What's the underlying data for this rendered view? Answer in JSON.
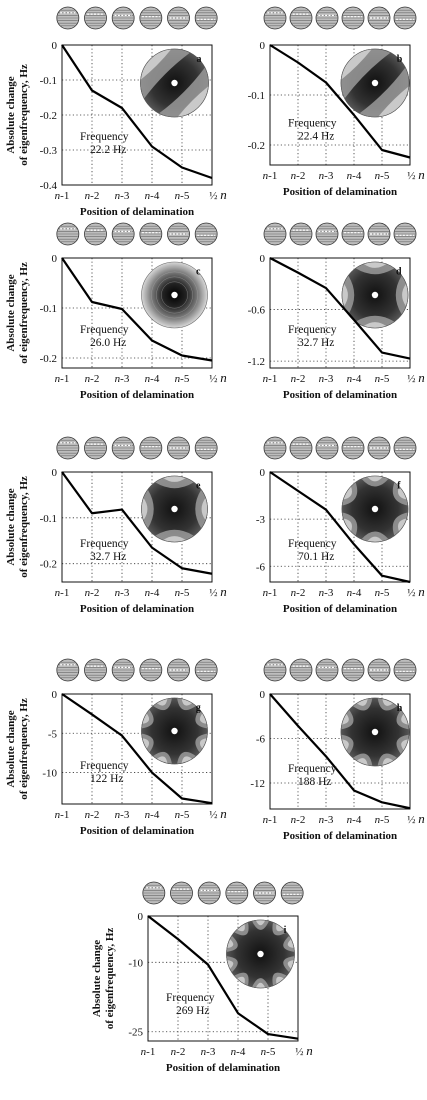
{
  "chart_data": [
    {
      "type": "line",
      "panel": "a",
      "frequency_label": "Frequency",
      "frequency": "22.2 Hz",
      "categories": [
        "n-1",
        "n-2",
        "n-3",
        "n-4",
        "n-5",
        "½ n"
      ],
      "values": [
        0,
        -0.13,
        -0.18,
        -0.29,
        -0.35,
        -0.38
      ],
      "y_ticks": [
        "0",
        "-0.1",
        "-0.2",
        "-0.3",
        "-0.4"
      ],
      "ylim": [
        -0.4,
        0
      ],
      "xlabel": "Position of delamination",
      "ylabel": [
        "Absolute change",
        "of eigenfrequency, Hz"
      ],
      "mode_lobes": 2,
      "grid": true
    },
    {
      "type": "line",
      "panel": "b",
      "frequency_label": "Frequency",
      "frequency": "22.4 Hz",
      "categories": [
        "n-1",
        "n-2",
        "n-3",
        "n-4",
        "n-5",
        "½ n"
      ],
      "values": [
        0,
        -0.035,
        -0.075,
        -0.14,
        -0.21,
        -0.225
      ],
      "y_ticks": [
        "0",
        "-0.1",
        "-0.2"
      ],
      "ylim": [
        -0.24,
        0
      ],
      "xlabel": "Position of delamination",
      "ylabel": null,
      "mode_lobes": 2,
      "grid": true
    },
    {
      "type": "line",
      "panel": "c",
      "frequency_label": "Frequency",
      "frequency": "26.0 Hz",
      "categories": [
        "n-1",
        "n-2",
        "n-3",
        "n-4",
        "n-5",
        "½ n"
      ],
      "values": [
        0,
        -0.088,
        -0.102,
        -0.165,
        -0.195,
        -0.205
      ],
      "y_ticks": [
        "0",
        "-0.1",
        "-0.2"
      ],
      "ylim": [
        -0.22,
        0
      ],
      "xlabel": "Position of delamination",
      "ylabel": [
        "Absolute change",
        "of eigenfrequency, Hz"
      ],
      "mode_lobes": 0,
      "grid": true
    },
    {
      "type": "line",
      "panel": "d",
      "frequency_label": "Frequency",
      "frequency": "32.7 Hz",
      "categories": [
        "n-1",
        "n-2",
        "n-3",
        "n-4",
        "n-5",
        "½ n"
      ],
      "values": [
        0,
        -0.17,
        -0.35,
        -0.72,
        -1.1,
        -1.17
      ],
      "y_ticks": [
        "0",
        "-0.6",
        "-1.2"
      ],
      "ylim": [
        -1.28,
        0
      ],
      "xlabel": "Position of delamination",
      "ylabel": null,
      "mode_lobes": 4,
      "grid": true
    },
    {
      "type": "line",
      "panel": "e",
      "frequency_label": "Frequency",
      "frequency": "32.7 Hz",
      "categories": [
        "n-1",
        "n-2",
        "n-3",
        "n-4",
        "n-5",
        "½ n"
      ],
      "values": [
        0,
        -0.09,
        -0.082,
        -0.165,
        -0.21,
        -0.222
      ],
      "y_ticks": [
        "0",
        "-0.1",
        "-0.2"
      ],
      "ylim": [
        -0.24,
        0
      ],
      "xlabel": "Position of delamination",
      "ylabel": [
        "Absolute change",
        "of eigenfrequency, Hz"
      ],
      "mode_lobes": 4,
      "grid": true
    },
    {
      "type": "line",
      "panel": "f",
      "frequency_label": "Frequency",
      "frequency": "70.1 Hz",
      "categories": [
        "n-1",
        "n-2",
        "n-3",
        "n-4",
        "n-5",
        "½ n"
      ],
      "values": [
        0,
        -1.2,
        -2.4,
        -4.6,
        -6.6,
        -7.0
      ],
      "y_ticks": [
        "0",
        "-3",
        "-6"
      ],
      "ylim": [
        -7.0,
        0
      ],
      "xlabel": "Position of delamination",
      "ylabel": null,
      "mode_lobes": 6,
      "grid": true
    },
    {
      "type": "line",
      "panel": "g",
      "frequency_label": "Frequency",
      "frequency": "122 Hz",
      "categories": [
        "n-1",
        "n-2",
        "n-3",
        "n-4",
        "n-5",
        "½ n"
      ],
      "values": [
        0,
        -2.6,
        -5.3,
        -10.0,
        -13.3,
        -13.9
      ],
      "y_ticks": [
        "0",
        "-5",
        "-10"
      ],
      "ylim": [
        -14,
        0
      ],
      "xlabel": "Position of delamination",
      "ylabel": [
        "Absolute change",
        "of eigenfrequency, Hz"
      ],
      "mode_lobes": 8,
      "grid": true
    },
    {
      "type": "line",
      "panel": "h",
      "frequency_label": "Frequency",
      "frequency": "188 Hz",
      "categories": [
        "n-1",
        "n-2",
        "n-3",
        "n-4",
        "n-5",
        "½ n"
      ],
      "values": [
        0,
        -4.3,
        -8.4,
        -13.0,
        -14.6,
        -15.4
      ],
      "y_ticks": [
        "0",
        "-6",
        "-12"
      ],
      "ylim": [
        -15.5,
        0
      ],
      "xlabel": "Position of delamination",
      "ylabel": null,
      "mode_lobes": 8,
      "grid": true
    },
    {
      "type": "line",
      "panel": "i",
      "frequency_label": "Frequency",
      "frequency": "269 Hz",
      "categories": [
        "n-1",
        "n-2",
        "n-3",
        "n-4",
        "n-5",
        "½ n"
      ],
      "values": [
        0,
        -5,
        -10.5,
        -21,
        -25.5,
        -26.5
      ],
      "y_ticks": [
        "0",
        "-10",
        "-25"
      ],
      "ylim": [
        -27,
        0
      ],
      "xlabel": "Position of delamination",
      "ylabel": [
        "Absolute change",
        "of eigenfrequency, Hz"
      ],
      "mode_lobes": 10,
      "grid": true
    }
  ]
}
